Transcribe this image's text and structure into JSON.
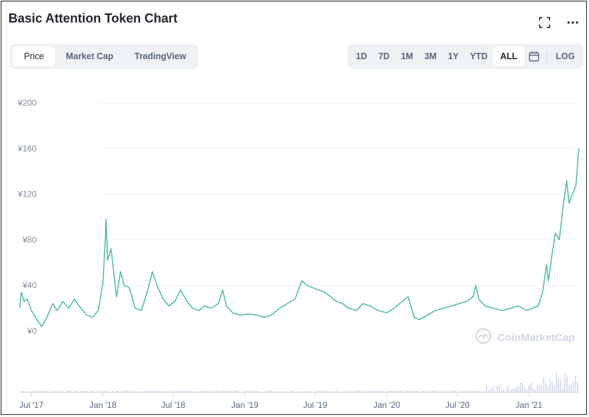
{
  "title": "Basic Attention Token Chart",
  "tabs": [
    {
      "label": "Price",
      "active": true
    },
    {
      "label": "Market Cap",
      "active": false
    },
    {
      "label": "TradingView",
      "active": false
    }
  ],
  "ranges": [
    {
      "label": "1D",
      "active": false
    },
    {
      "label": "7D",
      "active": false
    },
    {
      "label": "1M",
      "active": false
    },
    {
      "label": "3M",
      "active": false
    },
    {
      "label": "1Y",
      "active": false
    },
    {
      "label": "YTD",
      "active": false
    },
    {
      "label": "ALL",
      "active": true
    }
  ],
  "log_label": "LOG",
  "icons": {
    "fullscreen": "fullscreen-icon",
    "more": "more-options-icon",
    "calendar": "calendar-icon"
  },
  "watermark": "CoinMarketCap",
  "colors": {
    "line": "#4ac18e",
    "grid": "#eff2f5",
    "volume": "#cfd6e4",
    "accent": "#3861fb"
  },
  "chart_data": {
    "type": "line",
    "title": "",
    "xlabel": "",
    "ylabel": "",
    "y_unit": "¥",
    "ylim": [
      0,
      200
    ],
    "y_ticks": [
      "¥0",
      "¥40",
      "¥80",
      "¥120",
      "¥160",
      "¥200"
    ],
    "y_tick_values": [
      0,
      40,
      80,
      120,
      160,
      200
    ],
    "x_ticks": [
      "Jul '17",
      "Jan '18",
      "Jul '18",
      "Jan '19",
      "Jul '19",
      "Jan '20",
      "Jul '20",
      "Jan '21"
    ],
    "x_tick_dates": [
      "2017-07-01",
      "2018-01-01",
      "2018-07-01",
      "2019-01-01",
      "2019-07-01",
      "2020-01-01",
      "2020-07-01",
      "2021-01-01"
    ],
    "grid": true,
    "series": [
      {
        "points": [
          [
            "2017-06-01",
            20
          ],
          [
            "2017-06-05",
            34
          ],
          [
            "2017-06-12",
            26
          ],
          [
            "2017-06-20",
            28
          ],
          [
            "2017-07-01",
            18
          ],
          [
            "2017-07-15",
            10
          ],
          [
            "2017-07-28",
            4
          ],
          [
            "2017-08-10",
            12
          ],
          [
            "2017-08-25",
            24
          ],
          [
            "2017-09-05",
            18
          ],
          [
            "2017-09-20",
            26
          ],
          [
            "2017-10-05",
            20
          ],
          [
            "2017-10-20",
            28
          ],
          [
            "2017-11-01",
            22
          ],
          [
            "2017-11-20",
            14
          ],
          [
            "2017-12-05",
            12
          ],
          [
            "2017-12-20",
            18
          ],
          [
            "2018-01-01",
            42
          ],
          [
            "2018-01-07",
            80
          ],
          [
            "2018-01-09",
            98
          ],
          [
            "2018-01-13",
            62
          ],
          [
            "2018-01-22",
            72
          ],
          [
            "2018-02-05",
            30
          ],
          [
            "2018-02-15",
            52
          ],
          [
            "2018-02-25",
            40
          ],
          [
            "2018-03-10",
            38
          ],
          [
            "2018-03-25",
            20
          ],
          [
            "2018-04-10",
            18
          ],
          [
            "2018-04-28",
            38
          ],
          [
            "2018-05-08",
            52
          ],
          [
            "2018-05-20",
            40
          ],
          [
            "2018-06-05",
            28
          ],
          [
            "2018-06-20",
            22
          ],
          [
            "2018-07-05",
            26
          ],
          [
            "2018-07-20",
            36
          ],
          [
            "2018-08-05",
            26
          ],
          [
            "2018-08-20",
            20
          ],
          [
            "2018-09-05",
            18
          ],
          [
            "2018-09-20",
            22
          ],
          [
            "2018-10-05",
            20
          ],
          [
            "2018-10-25",
            24
          ],
          [
            "2018-11-05",
            36
          ],
          [
            "2018-11-15",
            22
          ],
          [
            "2018-12-01",
            16
          ],
          [
            "2018-12-20",
            14
          ],
          [
            "2019-01-10",
            15
          ],
          [
            "2019-02-01",
            14
          ],
          [
            "2019-02-20",
            12
          ],
          [
            "2019-03-10",
            14
          ],
          [
            "2019-04-01",
            20
          ],
          [
            "2019-04-20",
            24
          ],
          [
            "2019-05-10",
            28
          ],
          [
            "2019-05-28",
            44
          ],
          [
            "2019-06-10",
            40
          ],
          [
            "2019-06-25",
            38
          ],
          [
            "2019-07-10",
            36
          ],
          [
            "2019-07-25",
            34
          ],
          [
            "2019-08-10",
            30
          ],
          [
            "2019-08-25",
            26
          ],
          [
            "2019-09-10",
            24
          ],
          [
            "2019-09-25",
            20
          ],
          [
            "2019-10-15",
            18
          ],
          [
            "2019-11-01",
            24
          ],
          [
            "2019-11-20",
            22
          ],
          [
            "2019-12-10",
            18
          ],
          [
            "2020-01-01",
            16
          ],
          [
            "2020-01-20",
            20
          ],
          [
            "2020-02-10",
            26
          ],
          [
            "2020-02-25",
            30
          ],
          [
            "2020-03-12",
            12
          ],
          [
            "2020-03-25",
            10
          ],
          [
            "2020-04-15",
            14
          ],
          [
            "2020-05-05",
            18
          ],
          [
            "2020-05-25",
            20
          ],
          [
            "2020-06-15",
            22
          ],
          [
            "2020-07-05",
            24
          ],
          [
            "2020-07-25",
            26
          ],
          [
            "2020-08-10",
            30
          ],
          [
            "2020-08-17",
            40
          ],
          [
            "2020-08-25",
            28
          ],
          [
            "2020-09-10",
            22
          ],
          [
            "2020-10-01",
            20
          ],
          [
            "2020-10-25",
            18
          ],
          [
            "2020-11-15",
            20
          ],
          [
            "2020-12-05",
            22
          ],
          [
            "2020-12-25",
            18
          ],
          [
            "2021-01-10",
            20
          ],
          [
            "2021-01-25",
            22
          ],
          [
            "2021-02-05",
            34
          ],
          [
            "2021-02-15",
            58
          ],
          [
            "2021-02-20",
            44
          ],
          [
            "2021-02-28",
            64
          ],
          [
            "2021-03-10",
            86
          ],
          [
            "2021-03-20",
            80
          ],
          [
            "2021-03-30",
            110
          ],
          [
            "2021-04-08",
            132
          ],
          [
            "2021-04-14",
            112
          ],
          [
            "2021-04-25",
            122
          ],
          [
            "2021-05-02",
            128
          ],
          [
            "2021-05-08",
            156
          ],
          [
            "2021-05-10",
            160
          ]
        ]
      }
    ]
  }
}
